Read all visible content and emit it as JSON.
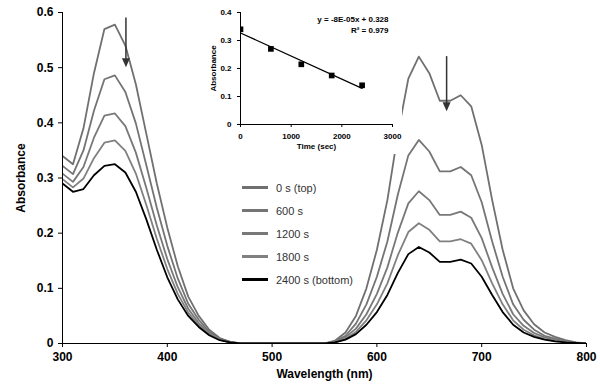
{
  "chart_data": [
    {
      "type": "line",
      "x_label": "Wavelength (nm)",
      "y_label": "Absorbance",
      "x": [
        300,
        310,
        320,
        330,
        340,
        350,
        360,
        370,
        380,
        390,
        400,
        410,
        420,
        430,
        440,
        450,
        460,
        470,
        480,
        490,
        500,
        510,
        520,
        530,
        540,
        550,
        560,
        570,
        580,
        590,
        600,
        610,
        620,
        630,
        640,
        650,
        660,
        670,
        680,
        690,
        700,
        710,
        720,
        730,
        740,
        750,
        760,
        770,
        780,
        790,
        800
      ],
      "series": [
        {
          "name": "0 s (top)",
          "color": "#707070",
          "values": [
            0.34,
            0.325,
            0.39,
            0.49,
            0.57,
            0.578,
            0.54,
            0.47,
            0.38,
            0.29,
            0.21,
            0.14,
            0.085,
            0.05,
            0.025,
            0.01,
            0.003,
            0,
            0,
            0,
            0,
            0,
            0,
            0,
            0,
            0,
            0.005,
            0.02,
            0.05,
            0.1,
            0.17,
            0.26,
            0.38,
            0.48,
            0.52,
            0.49,
            0.44,
            0.44,
            0.45,
            0.43,
            0.36,
            0.26,
            0.17,
            0.1,
            0.06,
            0.035,
            0.02,
            0.012,
            0.006,
            0.002,
            0
          ]
        },
        {
          "name": "600 s",
          "color": "#747474",
          "values": [
            0.322,
            0.307,
            0.35,
            0.422,
            0.479,
            0.486,
            0.456,
            0.399,
            0.323,
            0.246,
            0.177,
            0.118,
            0.072,
            0.043,
            0.021,
            0.009,
            0.003,
            0,
            0,
            0,
            0,
            0,
            0,
            0,
            0,
            0,
            0.004,
            0.014,
            0.036,
            0.071,
            0.121,
            0.185,
            0.27,
            0.341,
            0.369,
            0.348,
            0.312,
            0.312,
            0.32,
            0.305,
            0.256,
            0.185,
            0.121,
            0.071,
            0.043,
            0.025,
            0.014,
            0.009,
            0.004,
            0.001,
            0
          ]
        },
        {
          "name": "1200 s",
          "color": "#787878",
          "values": [
            0.308,
            0.293,
            0.32,
            0.373,
            0.413,
            0.417,
            0.394,
            0.346,
            0.282,
            0.214,
            0.153,
            0.102,
            0.063,
            0.037,
            0.019,
            0.007,
            0.002,
            0,
            0,
            0,
            0,
            0,
            0,
            0,
            0,
            0,
            0.003,
            0.011,
            0.027,
            0.053,
            0.09,
            0.138,
            0.201,
            0.254,
            0.276,
            0.26,
            0.233,
            0.233,
            0.239,
            0.228,
            0.191,
            0.138,
            0.09,
            0.053,
            0.032,
            0.019,
            0.011,
            0.006,
            0.003,
            0.001,
            0
          ]
        },
        {
          "name": "1800 s",
          "color": "#808080",
          "values": [
            0.298,
            0.283,
            0.299,
            0.336,
            0.364,
            0.368,
            0.349,
            0.308,
            0.251,
            0.19,
            0.135,
            0.09,
            0.056,
            0.033,
            0.017,
            0.007,
            0.002,
            0,
            0,
            0,
            0,
            0,
            0,
            0,
            0,
            0,
            0.002,
            0.008,
            0.021,
            0.042,
            0.071,
            0.109,
            0.16,
            0.202,
            0.218,
            0.206,
            0.185,
            0.185,
            0.189,
            0.181,
            0.151,
            0.109,
            0.071,
            0.042,
            0.025,
            0.015,
            0.008,
            0.005,
            0.003,
            0.001,
            0
          ]
        },
        {
          "name": "2400 s (bottom)",
          "color": "#000000",
          "values": [
            0.29,
            0.275,
            0.28,
            0.305,
            0.322,
            0.325,
            0.31,
            0.275,
            0.225,
            0.17,
            0.12,
            0.08,
            0.05,
            0.03,
            0.015,
            0.006,
            0.002,
            0,
            0,
            0,
            0,
            0,
            0,
            0,
            0,
            0,
            0.002,
            0.007,
            0.017,
            0.034,
            0.057,
            0.088,
            0.128,
            0.162,
            0.175,
            0.165,
            0.148,
            0.148,
            0.152,
            0.145,
            0.121,
            0.088,
            0.057,
            0.034,
            0.02,
            0.012,
            0.007,
            0.004,
            0.002,
            0.001,
            0
          ]
        }
      ],
      "xlim": [
        300,
        800
      ],
      "xticks": [
        300,
        400,
        500,
        600,
        700,
        800
      ],
      "ylim": [
        0,
        0.6
      ],
      "yticks": [
        0,
        0.1,
        0.2,
        0.3,
        0.4,
        0.5,
        0.6
      ],
      "grid": false,
      "legend": "center"
    },
    {
      "type": "scatter",
      "x_label": "Time (sec)",
      "y_label": "Absorbance",
      "x": [
        0,
        600,
        1200,
        1800,
        2400
      ],
      "series": [
        {
          "color": "#000000",
          "marker": "square",
          "line_style": "solid",
          "values": [
            0.34,
            0.27,
            0.215,
            0.175,
            0.14
          ]
        }
      ],
      "annotations": [
        "y = -8E-05x + 0.328",
        "R² = 0.979"
      ],
      "xlim": [
        0,
        3000
      ],
      "xticks": [
        0,
        1000,
        2000,
        3000
      ],
      "ylim": [
        0,
        0.4
      ],
      "yticks": [
        0,
        0.1,
        0.2,
        0.3,
        0.4
      ],
      "grid": false
    }
  ]
}
